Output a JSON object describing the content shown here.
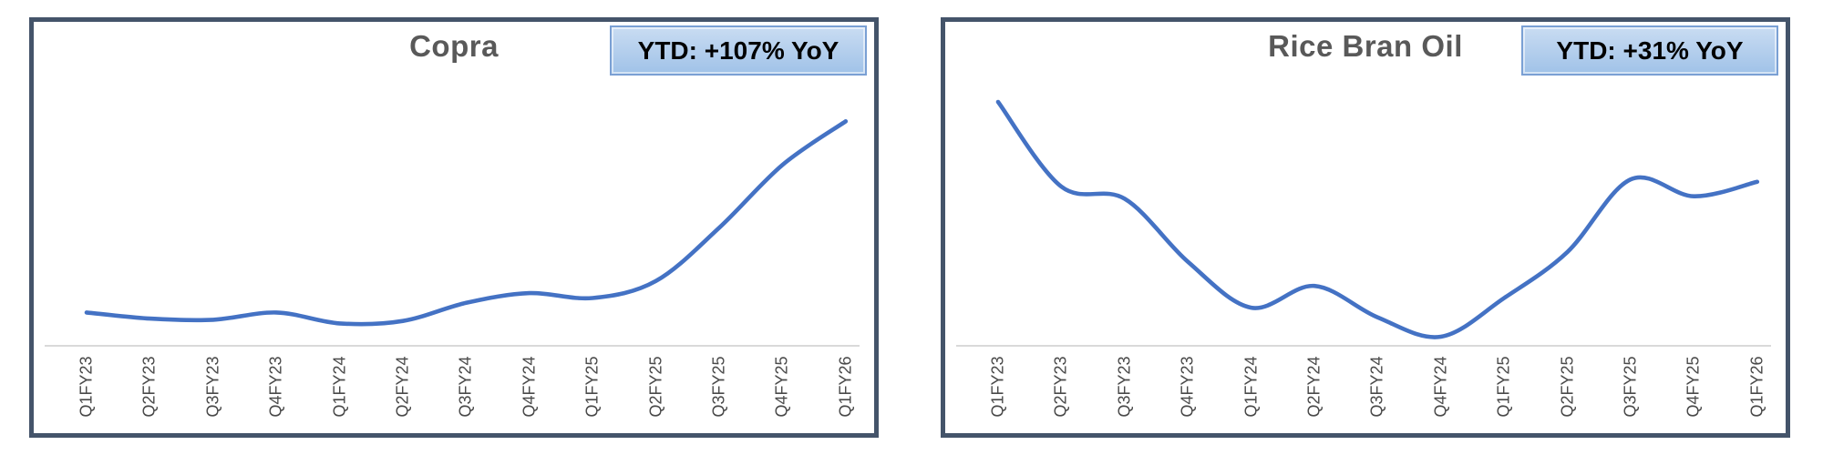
{
  "accent_colors": {
    "line": "#4472C4",
    "panel_border": "#44546A",
    "axis_line": "#D9D9D9",
    "title_color": "#595959",
    "tick_color": "#4A4A4A",
    "badge_bg_top": "#C9DCF2",
    "badge_bg_bottom": "#A0C2E8",
    "badge_border": "#7AA0D4",
    "badge_text": "#000000"
  },
  "chart_data": [
    {
      "type": "line",
      "title": "Copra",
      "badge": "YTD: +107% YoY",
      "categories": [
        "Q1FY23",
        "Q2FY23",
        "Q3FY23",
        "Q4FY23",
        "Q1FY24",
        "Q2FY24",
        "Q3FY24",
        "Q4FY24",
        "Q1FY25",
        "Q2FY25",
        "Q3FY25",
        "Q4FY25",
        "Q1FY26"
      ],
      "values": [
        13,
        10.5,
        10,
        13,
        8.5,
        9.5,
        17,
        21,
        19,
        26,
        48,
        74,
        92
      ],
      "xlabel": "",
      "ylabel": "",
      "ylim": [
        0,
        105
      ],
      "grid": false,
      "legend": "none",
      "smooth": true,
      "y_axis_visible": false
    },
    {
      "type": "line",
      "title": "Rice Bran Oil",
      "badge": "YTD: +31% YoY",
      "categories": [
        "Q1FY23",
        "Q2FY23",
        "Q3FY23",
        "Q4FY23",
        "Q1FY24",
        "Q2FY24",
        "Q3FY24",
        "Q4FY24",
        "Q1FY25",
        "Q2FY25",
        "Q3FY25",
        "Q4FY25",
        "Q1FY26"
      ],
      "values": [
        100,
        65,
        60,
        34,
        15,
        24,
        11,
        3,
        19,
        38,
        68,
        61,
        67
      ],
      "xlabel": "",
      "ylabel": "",
      "ylim": [
        0,
        105
      ],
      "grid": false,
      "legend": "none",
      "smooth": true,
      "y_axis_visible": false
    }
  ]
}
